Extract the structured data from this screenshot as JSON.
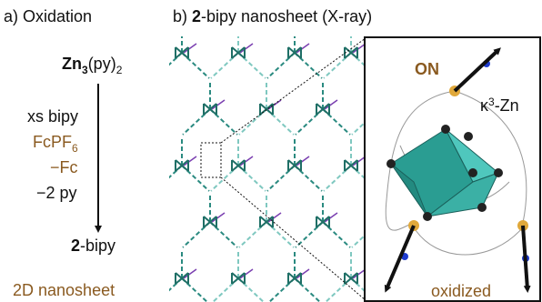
{
  "panel_a": {
    "label": "a) Oxidation",
    "reactant": {
      "metal": "Zn",
      "metal_subscript": "3",
      "ligand": "(py)",
      "ligand_subscript": "2"
    },
    "conditions": {
      "reagent_1": "xs bipy",
      "oxidant": "FcPF",
      "oxidant_subscript": "6",
      "byproduct_1": "−Fc",
      "byproduct_2": "−2 py"
    },
    "product": {
      "number": "2",
      "name": "-bipy"
    },
    "footer": "2D nanosheet"
  },
  "panel_b": {
    "label_prefix": "b) ",
    "label_number": "2",
    "label_rest": "-bipy nanosheet (X-ray)",
    "inset": {
      "state": "ON",
      "kappa": "κ",
      "kappa_superscript": "3",
      "kappa_rest": "-Zn",
      "caption": "oxidized"
    }
  }
}
